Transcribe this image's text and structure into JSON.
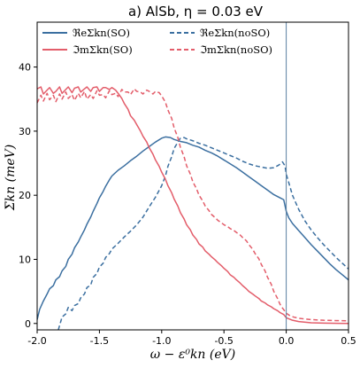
{
  "chart_data": {
    "type": "line",
    "title": "a) AlSb, η = 0.03 eV",
    "xlabel": "ω − ε⁰kn (eV)",
    "ylabel": "Σkn (meV)",
    "xlim": [
      -2.0,
      0.5
    ],
    "ylim": [
      -1,
      47
    ],
    "xticks": [
      "-2.0",
      "-1.5",
      "-1.0",
      "-0.5",
      "0.0",
      "0.5"
    ],
    "yticks": [
      "0",
      "10",
      "20",
      "30",
      "40"
    ],
    "grid": false,
    "legend_position": "top",
    "vline_x": 0.0,
    "colors": {
      "blue": "#3b6fa0",
      "red": "#e35d6a",
      "vline": "#5a7fa0"
    },
    "series": [
      {
        "name": "ℜeΣkn(SO)",
        "color": "#3b6fa0",
        "dash": false,
        "points": [
          [
            -2.0,
            0.6
          ],
          [
            -1.98,
            2.2
          ],
          [
            -1.95,
            3.5
          ],
          [
            -1.92,
            4.6
          ],
          [
            -1.9,
            5.4
          ],
          [
            -1.87,
            5.9
          ],
          [
            -1.85,
            6.8
          ],
          [
            -1.82,
            7.3
          ],
          [
            -1.8,
            8.2
          ],
          [
            -1.77,
            8.9
          ],
          [
            -1.75,
            10.0
          ],
          [
            -1.72,
            10.8
          ],
          [
            -1.7,
            11.8
          ],
          [
            -1.67,
            12.7
          ],
          [
            -1.65,
            13.5
          ],
          [
            -1.62,
            14.6
          ],
          [
            -1.6,
            15.5
          ],
          [
            -1.57,
            16.6
          ],
          [
            -1.55,
            17.5
          ],
          [
            -1.52,
            18.7
          ],
          [
            -1.5,
            19.6
          ],
          [
            -1.47,
            20.6
          ],
          [
            -1.45,
            21.4
          ],
          [
            -1.42,
            22.4
          ],
          [
            -1.4,
            23.0
          ],
          [
            -1.35,
            23.9
          ],
          [
            -1.3,
            24.6
          ],
          [
            -1.25,
            25.4
          ],
          [
            -1.2,
            26.1
          ],
          [
            -1.15,
            26.9
          ],
          [
            -1.1,
            27.6
          ],
          [
            -1.05,
            28.3
          ],
          [
            -1.0,
            28.9
          ],
          [
            -0.97,
            29.1
          ],
          [
            -0.93,
            29.0
          ],
          [
            -0.9,
            28.7
          ],
          [
            -0.85,
            28.4
          ],
          [
            -0.8,
            28.2
          ],
          [
            -0.75,
            27.8
          ],
          [
            -0.7,
            27.5
          ],
          [
            -0.65,
            27.0
          ],
          [
            -0.6,
            26.6
          ],
          [
            -0.55,
            26.1
          ],
          [
            -0.5,
            25.5
          ],
          [
            -0.45,
            24.9
          ],
          [
            -0.4,
            24.3
          ],
          [
            -0.35,
            23.6
          ],
          [
            -0.3,
            22.9
          ],
          [
            -0.25,
            22.2
          ],
          [
            -0.2,
            21.5
          ],
          [
            -0.15,
            20.8
          ],
          [
            -0.1,
            20.1
          ],
          [
            -0.05,
            19.6
          ],
          [
            -0.02,
            19.3
          ],
          [
            0.0,
            17.5
          ],
          [
            0.02,
            16.5
          ],
          [
            0.05,
            15.6
          ],
          [
            0.1,
            14.5
          ],
          [
            0.15,
            13.4
          ],
          [
            0.2,
            12.3
          ],
          [
            0.25,
            11.3
          ],
          [
            0.3,
            10.3
          ],
          [
            0.35,
            9.3
          ],
          [
            0.4,
            8.4
          ],
          [
            0.45,
            7.6
          ],
          [
            0.5,
            6.8
          ]
        ]
      },
      {
        "name": "ℜeΣkn(noSO)",
        "color": "#3b6fa0",
        "dash": true,
        "points": [
          [
            -1.83,
            -1.0
          ],
          [
            -1.8,
            1.0
          ],
          [
            -1.77,
            1.5
          ],
          [
            -1.75,
            2.5
          ],
          [
            -1.72,
            2.0
          ],
          [
            -1.7,
            2.8
          ],
          [
            -1.67,
            3.1
          ],
          [
            -1.65,
            4.0
          ],
          [
            -1.62,
            4.6
          ],
          [
            -1.6,
            5.6
          ],
          [
            -1.57,
            6.0
          ],
          [
            -1.55,
            7.2
          ],
          [
            -1.52,
            7.8
          ],
          [
            -1.5,
            8.8
          ],
          [
            -1.47,
            9.4
          ],
          [
            -1.45,
            10.3
          ],
          [
            -1.42,
            10.9
          ],
          [
            -1.4,
            11.6
          ],
          [
            -1.35,
            12.5
          ],
          [
            -1.3,
            13.5
          ],
          [
            -1.25,
            14.4
          ],
          [
            -1.2,
            15.4
          ],
          [
            -1.15,
            16.6
          ],
          [
            -1.1,
            18.2
          ],
          [
            -1.05,
            19.7
          ],
          [
            -1.0,
            21.5
          ],
          [
            -0.97,
            23.0
          ],
          [
            -0.95,
            24.5
          ],
          [
            -0.92,
            26.0
          ],
          [
            -0.9,
            27.3
          ],
          [
            -0.87,
            28.3
          ],
          [
            -0.85,
            28.9
          ],
          [
            -0.82,
            29.0
          ],
          [
            -0.8,
            28.8
          ],
          [
            -0.75,
            28.5
          ],
          [
            -0.7,
            28.1
          ],
          [
            -0.65,
            27.8
          ],
          [
            -0.6,
            27.4
          ],
          [
            -0.55,
            27.0
          ],
          [
            -0.5,
            26.6
          ],
          [
            -0.45,
            26.2
          ],
          [
            -0.4,
            25.8
          ],
          [
            -0.35,
            25.3
          ],
          [
            -0.3,
            24.9
          ],
          [
            -0.25,
            24.6
          ],
          [
            -0.2,
            24.4
          ],
          [
            -0.15,
            24.2
          ],
          [
            -0.1,
            24.3
          ],
          [
            -0.06,
            24.7
          ],
          [
            -0.03,
            25.2
          ],
          [
            -0.01,
            24.6
          ],
          [
            0.0,
            23.3
          ],
          [
            0.02,
            22.0
          ],
          [
            0.05,
            20.0
          ],
          [
            0.1,
            17.8
          ],
          [
            0.15,
            16.0
          ],
          [
            0.2,
            14.6
          ],
          [
            0.25,
            13.4
          ],
          [
            0.3,
            12.3
          ],
          [
            0.35,
            11.3
          ],
          [
            0.4,
            10.3
          ],
          [
            0.45,
            9.4
          ],
          [
            0.5,
            8.5
          ]
        ]
      },
      {
        "name": "ℑmΣkn(SO)",
        "color": "#e35d6a",
        "dash": false,
        "points": [
          [
            -2.0,
            36.6
          ],
          [
            -1.97,
            36.9
          ],
          [
            -1.95,
            35.8
          ],
          [
            -1.92,
            36.4
          ],
          [
            -1.9,
            36.8
          ],
          [
            -1.87,
            35.9
          ],
          [
            -1.85,
            36.2
          ],
          [
            -1.82,
            36.9
          ],
          [
            -1.8,
            35.9
          ],
          [
            -1.77,
            36.5
          ],
          [
            -1.75,
            36.9
          ],
          [
            -1.72,
            36.0
          ],
          [
            -1.7,
            36.7
          ],
          [
            -1.67,
            36.9
          ],
          [
            -1.65,
            36.1
          ],
          [
            -1.62,
            36.6
          ],
          [
            -1.6,
            36.9
          ],
          [
            -1.57,
            36.2
          ],
          [
            -1.55,
            36.8
          ],
          [
            -1.52,
            36.9
          ],
          [
            -1.5,
            36.2
          ],
          [
            -1.47,
            36.8
          ],
          [
            -1.45,
            36.8
          ],
          [
            -1.42,
            36.5
          ],
          [
            -1.4,
            36.8
          ],
          [
            -1.37,
            36.4
          ],
          [
            -1.35,
            35.9
          ],
          [
            -1.32,
            35.1
          ],
          [
            -1.3,
            34.3
          ],
          [
            -1.27,
            33.4
          ],
          [
            -1.25,
            32.4
          ],
          [
            -1.22,
            31.7
          ],
          [
            -1.2,
            31.0
          ],
          [
            -1.17,
            30.0
          ],
          [
            -1.15,
            29.2
          ],
          [
            -1.12,
            28.3
          ],
          [
            -1.1,
            27.4
          ],
          [
            -1.07,
            26.4
          ],
          [
            -1.05,
            25.5
          ],
          [
            -1.02,
            24.5
          ],
          [
            -1.0,
            23.6
          ],
          [
            -0.97,
            22.5
          ],
          [
            -0.95,
            21.5
          ],
          [
            -0.92,
            20.4
          ],
          [
            -0.9,
            19.4
          ],
          [
            -0.87,
            18.3
          ],
          [
            -0.85,
            17.3
          ],
          [
            -0.82,
            16.3
          ],
          [
            -0.8,
            15.4
          ],
          [
            -0.77,
            14.6
          ],
          [
            -0.75,
            13.8
          ],
          [
            -0.72,
            13.1
          ],
          [
            -0.7,
            12.4
          ],
          [
            -0.67,
            11.9
          ],
          [
            -0.65,
            11.3
          ],
          [
            -0.62,
            10.8
          ],
          [
            -0.6,
            10.4
          ],
          [
            -0.57,
            9.9
          ],
          [
            -0.55,
            9.5
          ],
          [
            -0.52,
            9.0
          ],
          [
            -0.5,
            8.6
          ],
          [
            -0.47,
            8.1
          ],
          [
            -0.45,
            7.6
          ],
          [
            -0.42,
            7.2
          ],
          [
            -0.4,
            6.8
          ],
          [
            -0.37,
            6.3
          ],
          [
            -0.35,
            5.9
          ],
          [
            -0.32,
            5.4
          ],
          [
            -0.3,
            5.0
          ],
          [
            -0.27,
            4.6
          ],
          [
            -0.25,
            4.3
          ],
          [
            -0.22,
            3.9
          ],
          [
            -0.2,
            3.5
          ],
          [
            -0.17,
            3.2
          ],
          [
            -0.15,
            2.9
          ],
          [
            -0.12,
            2.6
          ],
          [
            -0.1,
            2.3
          ],
          [
            -0.07,
            2.0
          ],
          [
            -0.05,
            1.7
          ],
          [
            -0.02,
            1.4
          ],
          [
            0.0,
            0.9
          ],
          [
            0.05,
            0.5
          ],
          [
            0.1,
            0.3
          ],
          [
            0.2,
            0.1
          ],
          [
            0.3,
            0.05
          ],
          [
            0.5,
            0.0
          ]
        ]
      },
      {
        "name": "ℑmΣkn(noSO)",
        "color": "#e35d6a",
        "dash": true,
        "points": [
          [
            -2.0,
            34.4
          ],
          [
            -1.97,
            35.6
          ],
          [
            -1.95,
            34.7
          ],
          [
            -1.92,
            35.9
          ],
          [
            -1.9,
            34.9
          ],
          [
            -1.87,
            35.6
          ],
          [
            -1.85,
            34.6
          ],
          [
            -1.82,
            35.8
          ],
          [
            -1.8,
            35.0
          ],
          [
            -1.77,
            36.1
          ],
          [
            -1.75,
            35.1
          ],
          [
            -1.72,
            35.7
          ],
          [
            -1.7,
            34.8
          ],
          [
            -1.67,
            35.9
          ],
          [
            -1.65,
            35.2
          ],
          [
            -1.62,
            36.2
          ],
          [
            -1.6,
            35.0
          ],
          [
            -1.57,
            35.7
          ],
          [
            -1.55,
            35.1
          ],
          [
            -1.52,
            36.3
          ],
          [
            -1.5,
            35.6
          ],
          [
            -1.47,
            35.7
          ],
          [
            -1.45,
            35.2
          ],
          [
            -1.42,
            36.3
          ],
          [
            -1.4,
            35.7
          ],
          [
            -1.37,
            35.9
          ],
          [
            -1.35,
            35.4
          ],
          [
            -1.32,
            36.5
          ],
          [
            -1.3,
            36.1
          ],
          [
            -1.27,
            36.1
          ],
          [
            -1.25,
            35.7
          ],
          [
            -1.22,
            36.6
          ],
          [
            -1.2,
            36.2
          ],
          [
            -1.17,
            36.1
          ],
          [
            -1.15,
            35.8
          ],
          [
            -1.12,
            36.4
          ],
          [
            -1.1,
            36.2
          ],
          [
            -1.07,
            35.8
          ],
          [
            -1.05,
            36.2
          ],
          [
            -1.02,
            36.0
          ],
          [
            -1.0,
            35.5
          ],
          [
            -0.97,
            34.5
          ],
          [
            -0.95,
            33.3
          ],
          [
            -0.92,
            32.0
          ],
          [
            -0.9,
            30.5
          ],
          [
            -0.87,
            29.0
          ],
          [
            -0.85,
            27.5
          ],
          [
            -0.82,
            26.0
          ],
          [
            -0.8,
            24.6
          ],
          [
            -0.77,
            23.3
          ],
          [
            -0.75,
            22.1
          ],
          [
            -0.72,
            21.0
          ],
          [
            -0.7,
            20.0
          ],
          [
            -0.67,
            19.1
          ],
          [
            -0.65,
            18.3
          ],
          [
            -0.62,
            17.6
          ],
          [
            -0.6,
            17.0
          ],
          [
            -0.57,
            16.5
          ],
          [
            -0.55,
            16.1
          ],
          [
            -0.52,
            15.7
          ],
          [
            -0.5,
            15.4
          ],
          [
            -0.47,
            15.1
          ],
          [
            -0.45,
            14.8
          ],
          [
            -0.42,
            14.5
          ],
          [
            -0.4,
            14.2
          ],
          [
            -0.37,
            13.8
          ],
          [
            -0.35,
            13.4
          ],
          [
            -0.32,
            12.9
          ],
          [
            -0.3,
            12.3
          ],
          [
            -0.27,
            11.6
          ],
          [
            -0.25,
            10.9
          ],
          [
            -0.22,
            10.1
          ],
          [
            -0.2,
            9.2
          ],
          [
            -0.17,
            8.2
          ],
          [
            -0.15,
            7.2
          ],
          [
            -0.12,
            6.1
          ],
          [
            -0.1,
            5.0
          ],
          [
            -0.07,
            3.9
          ],
          [
            -0.05,
            3.0
          ],
          [
            -0.03,
            2.4
          ],
          [
            -0.01,
            1.9
          ],
          [
            0.0,
            1.6
          ],
          [
            0.03,
            1.2
          ],
          [
            0.06,
            1.0
          ],
          [
            0.1,
            0.8
          ],
          [
            0.2,
            0.6
          ],
          [
            0.3,
            0.5
          ],
          [
            0.5,
            0.4
          ]
        ]
      }
    ]
  }
}
